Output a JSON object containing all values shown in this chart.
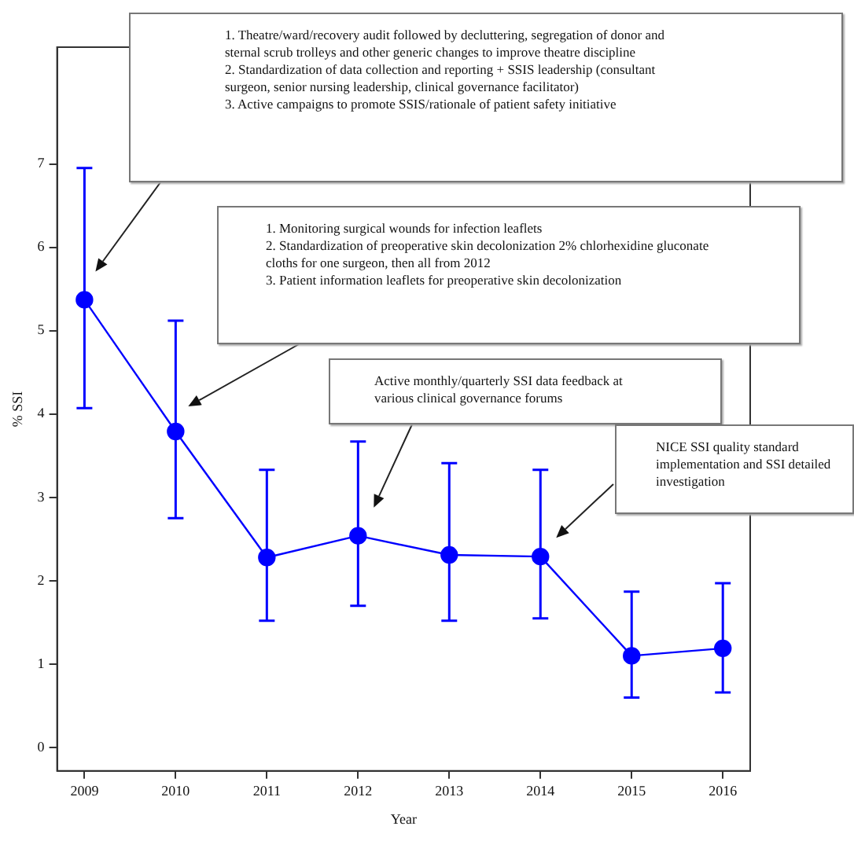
{
  "chart_data": {
    "type": "line",
    "xlabel": "Year",
    "ylabel": "% SSI",
    "x": [
      2009,
      2010,
      2011,
      2012,
      2013,
      2014,
      2015,
      2016
    ],
    "values": [
      5.37,
      3.79,
      2.28,
      2.54,
      2.31,
      2.29,
      1.1,
      1.19
    ],
    "errors": [
      [
        4.07,
        6.95
      ],
      [
        2.75,
        5.12
      ],
      [
        1.52,
        3.33
      ],
      [
        1.7,
        3.67
      ],
      [
        1.52,
        3.41
      ],
      [
        1.55,
        3.33
      ],
      [
        0.6,
        1.87
      ],
      [
        0.66,
        1.97
      ]
    ],
    "color": "#0000ff",
    "marker": "circle",
    "line_style": "solid",
    "grid": false,
    "legend": false,
    "xlim": [
      2008.7,
      2016.3
    ],
    "xticks": [
      2009,
      2010,
      2011,
      2012,
      2013,
      2014,
      2015,
      2016
    ],
    "ylim": [
      -0.28,
      8.4
    ],
    "yticks": [
      0,
      1,
      2,
      3,
      4,
      5,
      6,
      7
    ],
    "annotations": [
      "1. Theatre/ward/recovery audit followed by decluttering, segregation of donor and sternal scrub trolleys and other generic changes to improve theatre discipline\n2. Standardization of data collection and reporting + SSIS leadership (consultant surgeon, senior nursing leadership, clinical governance facilitator)\n3. Active campaigns to promote SSIS/rationale of patient safety initiative",
      "1. Monitoring surgical wounds for infection leaflets\n2. Standardization of preoperative skin decolonization 2% chlorhexidine gluconate cloths for one surgeon, then all from 2012\n3. Patient information leaflets for preoperative skin decolonization",
      "Active monthly/quarterly SSI data feedback at various clinical governance forums",
      "NICE SSI quality standard implementation and SSI detailed investigation"
    ]
  }
}
